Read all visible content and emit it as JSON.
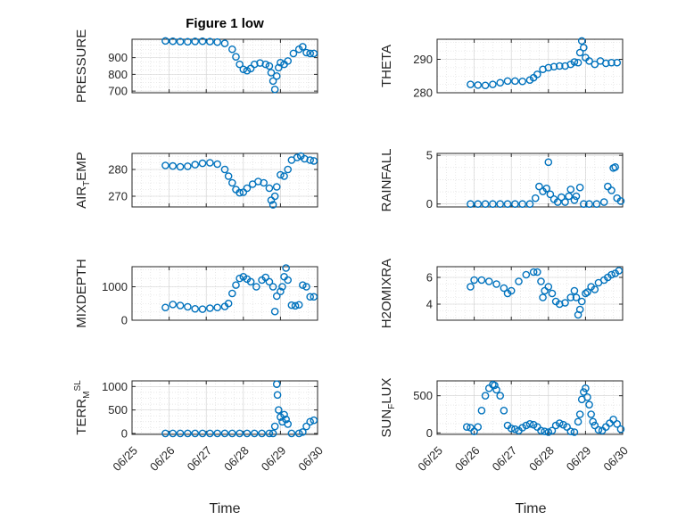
{
  "figure": {
    "title": "Figure 1 low",
    "xlabel": "Time",
    "x_tick_labels": [
      "06/25",
      "06/26",
      "06/27",
      "06/28",
      "06/29",
      "06/30"
    ]
  },
  "colors": {
    "marker": "#0072BD",
    "axes": "#262626",
    "grid": "#d9d9d9",
    "background": "#ffffff"
  },
  "chart_data": [
    {
      "type": "scatter",
      "panel": "PRESSURE",
      "ylabel": {
        "main": "PRESSURE",
        "sub": "",
        "sup": ""
      },
      "ylim": [
        690,
        1010
      ],
      "yticks": [
        700,
        800,
        900
      ],
      "ytick_labels": [
        "700",
        "800",
        "900"
      ],
      "xlim_days": [
        "06/25",
        "06/30"
      ],
      "grid": "on",
      "marker": "o",
      "points": [
        [
          25.9,
          1000
        ],
        [
          26.1,
          998
        ],
        [
          26.3,
          996
        ],
        [
          26.5,
          995
        ],
        [
          26.7,
          997
        ],
        [
          26.9,
          998
        ],
        [
          27.1,
          996
        ],
        [
          27.3,
          993
        ],
        [
          27.5,
          985
        ],
        [
          27.7,
          950
        ],
        [
          27.8,
          905
        ],
        [
          27.9,
          860
        ],
        [
          28.0,
          830
        ],
        [
          28.1,
          822
        ],
        [
          28.2,
          835
        ],
        [
          28.3,
          860
        ],
        [
          28.45,
          868
        ],
        [
          28.6,
          860
        ],
        [
          28.7,
          850
        ],
        [
          28.75,
          810
        ],
        [
          28.8,
          760
        ],
        [
          28.85,
          710
        ],
        [
          28.9,
          790
        ],
        [
          28.95,
          840
        ],
        [
          29.0,
          870
        ],
        [
          29.1,
          860
        ],
        [
          29.2,
          880
        ],
        [
          29.35,
          925
        ],
        [
          29.5,
          950
        ],
        [
          29.6,
          965
        ],
        [
          29.7,
          930
        ],
        [
          29.8,
          925
        ],
        [
          29.9,
          925
        ]
      ]
    },
    {
      "type": "scatter",
      "panel": "THETA",
      "ylabel": {
        "main": "THETA",
        "sub": "",
        "sup": ""
      },
      "ylim": [
        280,
        296
      ],
      "yticks": [
        280,
        290
      ],
      "ytick_labels": [
        "280",
        "290"
      ],
      "xlim_days": [
        "06/25",
        "06/30"
      ],
      "grid": "on",
      "marker": "o",
      "points": [
        [
          25.9,
          282.5
        ],
        [
          26.1,
          282.3
        ],
        [
          26.3,
          282.2
        ],
        [
          26.5,
          282.5
        ],
        [
          26.7,
          283.0
        ],
        [
          26.9,
          283.5
        ],
        [
          27.1,
          283.5
        ],
        [
          27.3,
          283.4
        ],
        [
          27.5,
          283.8
        ],
        [
          27.6,
          284.5
        ],
        [
          27.7,
          285.5
        ],
        [
          27.85,
          287.0
        ],
        [
          28.0,
          287.5
        ],
        [
          28.15,
          287.8
        ],
        [
          28.3,
          288.0
        ],
        [
          28.45,
          288.0
        ],
        [
          28.6,
          288.5
        ],
        [
          28.7,
          289.2
        ],
        [
          28.8,
          289.0
        ],
        [
          28.85,
          292.0
        ],
        [
          28.9,
          295.5
        ],
        [
          28.95,
          293.5
        ],
        [
          29.0,
          290.5
        ],
        [
          29.1,
          289.5
        ],
        [
          29.25,
          288.5
        ],
        [
          29.4,
          289.5
        ],
        [
          29.55,
          288.8
        ],
        [
          29.7,
          289.0
        ],
        [
          29.85,
          289.0
        ]
      ]
    },
    {
      "type": "scatter",
      "panel": "AIR_TEMP",
      "ylabel": {
        "main": "AIR",
        "sub": "T",
        "sup": "",
        "rest": "EMP"
      },
      "ylim": [
        266,
        286
      ],
      "yticks": [
        270,
        280
      ],
      "ytick_labels": [
        "270",
        "280"
      ],
      "xlim_days": [
        "06/25",
        "06/30"
      ],
      "grid": "on",
      "marker": "o",
      "points": [
        [
          25.9,
          281.5
        ],
        [
          26.1,
          281.3
        ],
        [
          26.3,
          281.0
        ],
        [
          26.5,
          281.2
        ],
        [
          26.7,
          281.8
        ],
        [
          26.9,
          282.3
        ],
        [
          27.1,
          282.5
        ],
        [
          27.3,
          282.0
        ],
        [
          27.5,
          280.0
        ],
        [
          27.6,
          277.5
        ],
        [
          27.7,
          275.0
        ],
        [
          27.8,
          272.5
        ],
        [
          27.9,
          271.3
        ],
        [
          28.0,
          271.5
        ],
        [
          28.1,
          273.0
        ],
        [
          28.25,
          274.5
        ],
        [
          28.4,
          275.5
        ],
        [
          28.55,
          275.0
        ],
        [
          28.7,
          273.0
        ],
        [
          28.75,
          268.5
        ],
        [
          28.8,
          266.8
        ],
        [
          28.85,
          270.0
        ],
        [
          28.9,
          273.5
        ],
        [
          29.0,
          278.0
        ],
        [
          29.1,
          277.5
        ],
        [
          29.2,
          280.0
        ],
        [
          29.3,
          283.5
        ],
        [
          29.45,
          284.5
        ],
        [
          29.55,
          285.0
        ],
        [
          29.65,
          284.0
        ],
        [
          29.8,
          283.5
        ],
        [
          29.9,
          283.2
        ]
      ]
    },
    {
      "type": "scatter",
      "panel": "RAINFALL",
      "ylabel": {
        "main": "RAINFALL",
        "sub": "",
        "sup": ""
      },
      "ylim": [
        -0.3,
        5.2
      ],
      "yticks": [
        0,
        5
      ],
      "ytick_labels": [
        "0",
        "5"
      ],
      "xlim_days": [
        "06/25",
        "06/30"
      ],
      "grid": "on",
      "marker": "o",
      "points": [
        [
          25.9,
          0
        ],
        [
          26.1,
          0
        ],
        [
          26.3,
          0
        ],
        [
          26.5,
          0
        ],
        [
          26.7,
          0
        ],
        [
          26.9,
          0
        ],
        [
          27.1,
          0
        ],
        [
          27.3,
          0
        ],
        [
          27.5,
          0
        ],
        [
          27.65,
          0.6
        ],
        [
          27.75,
          1.8
        ],
        [
          27.85,
          1.3
        ],
        [
          27.95,
          1.6
        ],
        [
          28.0,
          4.3
        ],
        [
          28.05,
          1.0
        ],
        [
          28.15,
          0.5
        ],
        [
          28.25,
          0.2
        ],
        [
          28.35,
          0.7
        ],
        [
          28.45,
          0.2
        ],
        [
          28.55,
          0.8
        ],
        [
          28.6,
          1.5
        ],
        [
          28.7,
          0.4
        ],
        [
          28.75,
          0.8
        ],
        [
          28.85,
          1.7
        ],
        [
          28.95,
          0
        ],
        [
          29.1,
          0
        ],
        [
          29.3,
          0
        ],
        [
          29.5,
          0.2
        ],
        [
          29.6,
          1.8
        ],
        [
          29.7,
          1.4
        ],
        [
          29.75,
          3.7
        ],
        [
          29.8,
          3.8
        ],
        [
          29.85,
          0.6
        ],
        [
          29.95,
          0.3
        ]
      ]
    },
    {
      "type": "scatter",
      "panel": "MIXDEPTH",
      "ylabel": {
        "main": "MIXDEPTH",
        "sub": "",
        "sup": ""
      },
      "ylim": [
        0,
        1600
      ],
      "yticks": [
        0,
        1000
      ],
      "ytick_labels": [
        "0",
        "1000"
      ],
      "xlim_days": [
        "06/25",
        "06/30"
      ],
      "grid": "on",
      "marker": "o",
      "points": [
        [
          25.9,
          380
        ],
        [
          26.1,
          470
        ],
        [
          26.3,
          440
        ],
        [
          26.5,
          400
        ],
        [
          26.7,
          340
        ],
        [
          26.9,
          330
        ],
        [
          27.1,
          360
        ],
        [
          27.3,
          380
        ],
        [
          27.5,
          410
        ],
        [
          27.6,
          500
        ],
        [
          27.7,
          800
        ],
        [
          27.8,
          1050
        ],
        [
          27.9,
          1250
        ],
        [
          28.0,
          1300
        ],
        [
          28.1,
          1230
        ],
        [
          28.2,
          1150
        ],
        [
          28.35,
          1000
        ],
        [
          28.5,
          1200
        ],
        [
          28.6,
          1280
        ],
        [
          28.7,
          1150
        ],
        [
          28.8,
          1000
        ],
        [
          28.85,
          260
        ],
        [
          28.9,
          720
        ],
        [
          29.0,
          860
        ],
        [
          29.05,
          1000
        ],
        [
          29.1,
          1300
        ],
        [
          29.15,
          1560
        ],
        [
          29.2,
          1200
        ],
        [
          29.3,
          450
        ],
        [
          29.4,
          430
        ],
        [
          29.5,
          460
        ],
        [
          29.6,
          1050
        ],
        [
          29.7,
          1000
        ],
        [
          29.8,
          700
        ],
        [
          29.9,
          700
        ]
      ]
    },
    {
      "type": "scatter",
      "panel": "H2OMIXRA",
      "ylabel": {
        "main": "H2OMIXRA",
        "sub": "",
        "sup": ""
      },
      "ylim": [
        2.8,
        6.8
      ],
      "yticks": [
        4,
        6
      ],
      "ytick_labels": [
        "4",
        "6"
      ],
      "xlim_days": [
        "06/25",
        "06/30"
      ],
      "grid": "on",
      "marker": "o",
      "points": [
        [
          25.9,
          5.3
        ],
        [
          26.0,
          5.8
        ],
        [
          26.2,
          5.8
        ],
        [
          26.4,
          5.7
        ],
        [
          26.6,
          5.5
        ],
        [
          26.8,
          5.2
        ],
        [
          26.9,
          4.8
        ],
        [
          27.0,
          5.0
        ],
        [
          27.2,
          5.7
        ],
        [
          27.4,
          6.2
        ],
        [
          27.6,
          6.4
        ],
        [
          27.7,
          6.4
        ],
        [
          27.8,
          5.7
        ],
        [
          27.85,
          4.5
        ],
        [
          27.9,
          5.0
        ],
        [
          28.0,
          5.3
        ],
        [
          28.1,
          4.8
        ],
        [
          28.2,
          4.2
        ],
        [
          28.3,
          4.0
        ],
        [
          28.45,
          4.1
        ],
        [
          28.6,
          4.5
        ],
        [
          28.7,
          5.0
        ],
        [
          28.75,
          4.5
        ],
        [
          28.8,
          3.2
        ],
        [
          28.85,
          3.6
        ],
        [
          28.9,
          4.2
        ],
        [
          29.0,
          4.8
        ],
        [
          29.05,
          4.9
        ],
        [
          29.15,
          5.3
        ],
        [
          29.25,
          5.1
        ],
        [
          29.35,
          5.6
        ],
        [
          29.5,
          5.8
        ],
        [
          29.6,
          6.0
        ],
        [
          29.7,
          6.2
        ],
        [
          29.8,
          6.3
        ],
        [
          29.9,
          6.5
        ]
      ]
    },
    {
      "type": "scatter",
      "panel": "TERR_MSL",
      "ylabel": {
        "main": "TERR",
        "sub": "M",
        "sup": "SL"
      },
      "ylim": [
        -20,
        1120
      ],
      "yticks": [
        0,
        500,
        1000
      ],
      "ytick_labels": [
        "0",
        "500",
        "1000"
      ],
      "xlim_days": [
        "06/25",
        "06/30"
      ],
      "grid": "on",
      "marker": "o",
      "points": [
        [
          25.9,
          0
        ],
        [
          26.1,
          0
        ],
        [
          26.3,
          0
        ],
        [
          26.5,
          0
        ],
        [
          26.7,
          0
        ],
        [
          26.9,
          0
        ],
        [
          27.1,
          0
        ],
        [
          27.3,
          0
        ],
        [
          27.5,
          0
        ],
        [
          27.7,
          0
        ],
        [
          27.9,
          0
        ],
        [
          28.1,
          0
        ],
        [
          28.3,
          0
        ],
        [
          28.5,
          0
        ],
        [
          28.7,
          0
        ],
        [
          28.8,
          0
        ],
        [
          28.85,
          150
        ],
        [
          28.9,
          1050
        ],
        [
          28.92,
          820
        ],
        [
          28.95,
          500
        ],
        [
          29.0,
          350
        ],
        [
          29.05,
          250
        ],
        [
          29.1,
          400
        ],
        [
          29.15,
          300
        ],
        [
          29.2,
          200
        ],
        [
          29.3,
          0
        ],
        [
          29.5,
          0
        ],
        [
          29.6,
          30
        ],
        [
          29.7,
          150
        ],
        [
          29.8,
          250
        ],
        [
          29.9,
          280
        ]
      ]
    },
    {
      "type": "scatter",
      "panel": "SUN_FLUX",
      "ylabel": {
        "main": "SUN",
        "sub": "F",
        "sup": "",
        "rest": "LUX"
      },
      "ylim": [
        -20,
        700
      ],
      "yticks": [
        0,
        500
      ],
      "ytick_labels": [
        "0",
        "500"
      ],
      "xlim_days": [
        "06/25",
        "06/30"
      ],
      "grid": "on",
      "marker": "o",
      "points": [
        [
          25.8,
          80
        ],
        [
          25.9,
          70
        ],
        [
          26.0,
          20
        ],
        [
          26.1,
          80
        ],
        [
          26.2,
          300
        ],
        [
          26.3,
          500
        ],
        [
          26.4,
          600
        ],
        [
          26.5,
          650
        ],
        [
          26.55,
          640
        ],
        [
          26.6,
          580
        ],
        [
          26.7,
          500
        ],
        [
          26.8,
          300
        ],
        [
          26.9,
          100
        ],
        [
          27.0,
          60
        ],
        [
          27.1,
          50
        ],
        [
          27.2,
          30
        ],
        [
          27.3,
          70
        ],
        [
          27.4,
          100
        ],
        [
          27.5,
          120
        ],
        [
          27.6,
          110
        ],
        [
          27.7,
          80
        ],
        [
          27.8,
          30
        ],
        [
          27.9,
          20
        ],
        [
          28.0,
          10
        ],
        [
          28.1,
          30
        ],
        [
          28.2,
          100
        ],
        [
          28.3,
          130
        ],
        [
          28.4,
          110
        ],
        [
          28.5,
          80
        ],
        [
          28.6,
          20
        ],
        [
          28.7,
          10
        ],
        [
          28.8,
          150
        ],
        [
          28.85,
          250
        ],
        [
          28.9,
          450
        ],
        [
          28.95,
          550
        ],
        [
          29.0,
          600
        ],
        [
          29.05,
          480
        ],
        [
          29.1,
          380
        ],
        [
          29.15,
          250
        ],
        [
          29.2,
          150
        ],
        [
          29.25,
          100
        ],
        [
          29.35,
          40
        ],
        [
          29.45,
          30
        ],
        [
          29.55,
          80
        ],
        [
          29.65,
          130
        ],
        [
          29.75,
          180
        ],
        [
          29.85,
          120
        ],
        [
          29.95,
          50
        ]
      ]
    }
  ]
}
